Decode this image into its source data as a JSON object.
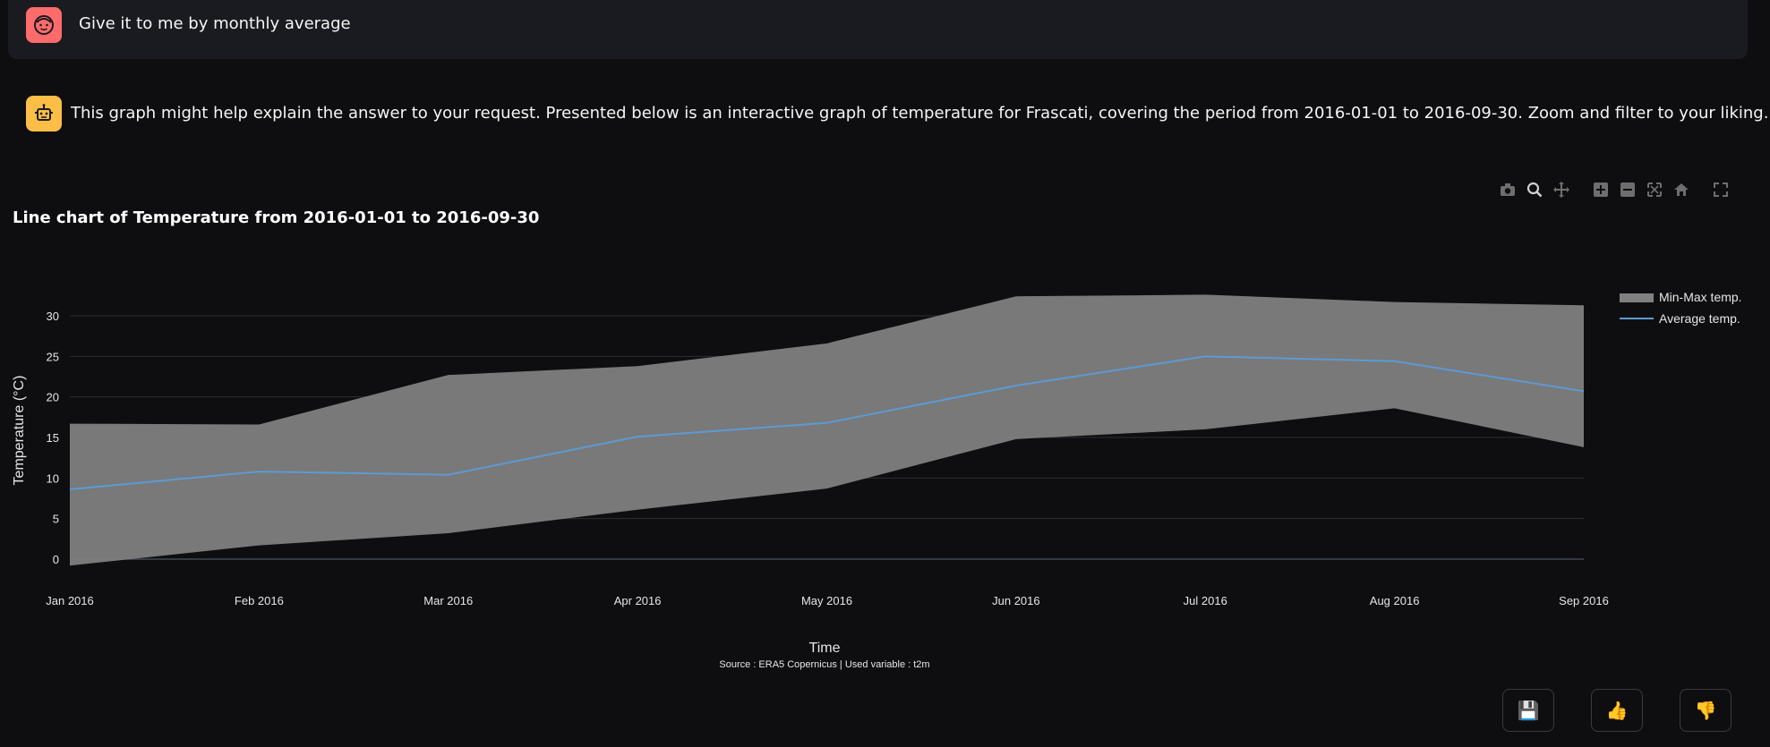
{
  "conversation": {
    "user_message": "Give it to me by monthly average",
    "bot_message": "This graph might help explain the answer to your request. Presented below is an interactive graph of temperature for Frascati, covering the period from 2016-01-01 to 2016-09-30. Zoom and filter to your liking."
  },
  "modebar": {
    "icons": [
      "camera-icon",
      "zoom-icon",
      "pan-icon",
      "zoom-in-icon",
      "zoom-out-icon",
      "autoscale-icon",
      "reset-axes-icon",
      "fullscreen-icon"
    ]
  },
  "chart_data": {
    "type": "line",
    "title": "Line chart of Temperature from 2016-01-01 to 2016-09-30",
    "xlabel": "Time",
    "ylabel": "Temperature (°C)",
    "source": "Source : ERA5 Copernicus | Used variable : t2m",
    "categories": [
      "Jan 2016",
      "Feb 2016",
      "Mar 2016",
      "Apr 2016",
      "May 2016",
      "Jun 2016",
      "Jul 2016",
      "Aug 2016",
      "Sep 2016"
    ],
    "ylim": [
      -1,
      33
    ],
    "yticks": [
      0,
      5,
      10,
      15,
      20,
      25,
      30
    ],
    "series": [
      {
        "name": "Min-Max temp.",
        "kind": "band",
        "color": "#808080",
        "min": [
          -0.8,
          1.7,
          3.2,
          6.1,
          8.7,
          14.8,
          16.0,
          18.6,
          13.8
        ],
        "max": [
          16.7,
          16.6,
          22.7,
          23.8,
          26.6,
          32.4,
          32.6,
          31.7,
          31.3
        ]
      },
      {
        "name": "Average temp.",
        "kind": "line",
        "color": "#5b9bd5",
        "values": [
          8.6,
          10.8,
          10.4,
          15.1,
          16.8,
          21.4,
          25.0,
          24.4,
          20.7
        ]
      }
    ],
    "legend_position": "top-right",
    "grid": true
  },
  "feedback": {
    "save_icon": "💾",
    "thumbs_up_icon": "👍",
    "thumbs_down_icon": "👎"
  }
}
